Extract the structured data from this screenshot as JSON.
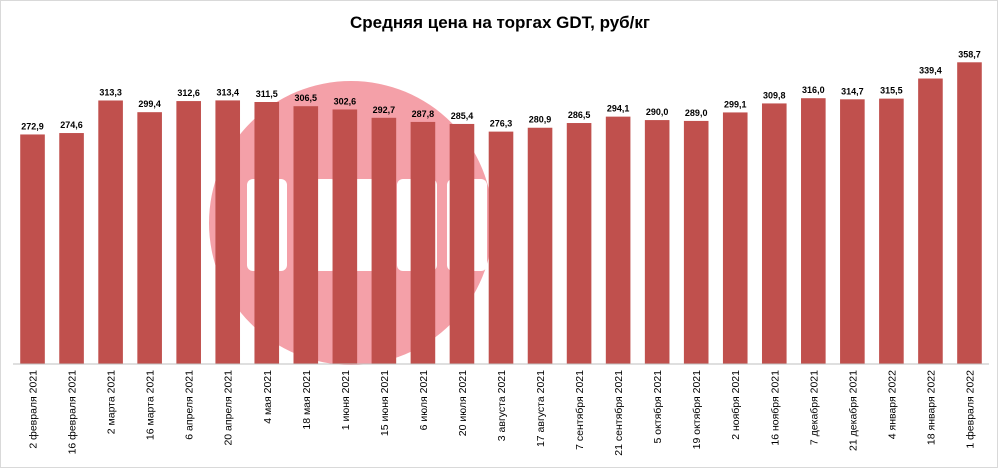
{
  "chart_data": {
    "type": "bar",
    "title": "Средняя цена на торгах GDT, руб/кг",
    "xlabel": "",
    "ylabel": "",
    "ylim": [
      0,
      365
    ],
    "grid": false,
    "legend": "none",
    "bar_color": "#c0504d",
    "categories": [
      "2 февраля 2021",
      "16 февраля 2021",
      "2 марта 2021",
      "16 марта 2021",
      "6 апреля 2021",
      "20 апреля 2021",
      "4 мая 2021",
      "18 мая 2021",
      "1 июня 2021",
      "15 июня 2021",
      "6 июля 2021",
      "20 июля 2021",
      "3 августа 2021",
      "17 августа 2021",
      "7 сентября 2021",
      "21 сентября 2021",
      "5 октября 2021",
      "19 октября 2021",
      "2 ноября 2021",
      "16 ноября 2021",
      "7 декабря 2021",
      "21 декабря 2021",
      "4 января 2022",
      "18 января 2022",
      "1 февраля 2022"
    ],
    "values": [
      272.9,
      274.6,
      313.3,
      299.4,
      312.6,
      313.4,
      311.5,
      306.5,
      302.6,
      292.7,
      287.8,
      285.4,
      276.3,
      280.9,
      286.5,
      294.1,
      290.0,
      289.0,
      299.1,
      309.8,
      316.0,
      314.7,
      315.5,
      339.4,
      358.7
    ],
    "value_labels": [
      "272,9",
      "274,6",
      "313,3",
      "299,4",
      "312,6",
      "313,4",
      "311,5",
      "306,5",
      "302,6",
      "292,7",
      "287,8",
      "285,4",
      "276,3",
      "280,9",
      "286,5",
      "294,1",
      "290,0",
      "289,0",
      "299,1",
      "309,8",
      "316,0",
      "314,7",
      "315,5",
      "339,4",
      "358,7"
    ]
  },
  "watermark": {
    "icon": "logo-watermark-icon",
    "color": "#f4a0a8"
  }
}
